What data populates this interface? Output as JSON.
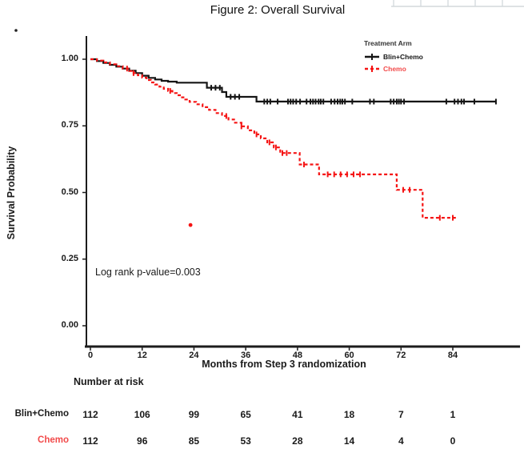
{
  "title": "Figure 2:  Overall Survival",
  "colors": {
    "black": "#151515",
    "red": "#f51414",
    "red_text": "#f24a4a",
    "axis": "#1c1c1c",
    "artifact_grid": "#d3d8db"
  },
  "legend": {
    "title": "Treatment Arm",
    "items": [
      {
        "label": "Blin+Chemo",
        "color": "#151515",
        "dash": "solid"
      },
      {
        "label": "Chemo",
        "color": "#f51414",
        "dash": "dashed"
      }
    ]
  },
  "annotation": "Log rank p-value=0.003",
  "axes": {
    "y_label": "Survival Probability",
    "x_label": "Months from Step 3 randomization",
    "y_ticks": [
      1.0,
      0.75,
      0.5,
      0.25,
      0.0
    ],
    "x_ticks": [
      0,
      12,
      24,
      36,
      48,
      60,
      72,
      84
    ]
  },
  "risk_table": {
    "header": "Number at risk",
    "rows": [
      {
        "label": "Blin+Chemo",
        "color": "#1a1a1a",
        "counts": [
          "112",
          "106",
          "99",
          "65",
          "41",
          "18",
          "7",
          "1"
        ]
      },
      {
        "label": "Chemo",
        "color": "#f24a4a",
        "counts": [
          "112",
          "96",
          "85",
          "53",
          "28",
          "14",
          "4",
          "0"
        ]
      }
    ]
  },
  "chart_data": {
    "type": "line",
    "subtype": "kaplan-meier-step",
    "title": "Figure 2:  Overall Survival",
    "xlabel": "Months from Step 3 randomization",
    "ylabel": "Survival Probability",
    "xlim": [
      0,
      96
    ],
    "ylim": [
      0.0,
      1.0
    ],
    "x_ticks": [
      0,
      12,
      24,
      36,
      48,
      60,
      72,
      84
    ],
    "y_ticks": [
      1.0,
      0.75,
      0.5,
      0.25,
      0.0
    ],
    "annotation": "Log rank p-value=0.003",
    "legend_position": "top-right-inside",
    "grid": false,
    "series": [
      {
        "name": "Blin+Chemo",
        "color": "#151515",
        "dash": "solid",
        "end_month": 94,
        "steps": [
          [
            0,
            1.0
          ],
          [
            1.5,
            0.993
          ],
          [
            3,
            0.986
          ],
          [
            4.5,
            0.979
          ],
          [
            6,
            0.972
          ],
          [
            7.5,
            0.965
          ],
          [
            9,
            0.957
          ],
          [
            10.5,
            0.948
          ],
          [
            12,
            0.938
          ],
          [
            13.5,
            0.93
          ],
          [
            15,
            0.924
          ],
          [
            16.5,
            0.919
          ],
          [
            18,
            0.916
          ],
          [
            20,
            0.912
          ],
          [
            27,
            0.893
          ],
          [
            30.5,
            0.877
          ],
          [
            31.5,
            0.859
          ],
          [
            38.5,
            0.841
          ]
        ],
        "censor_months": [
          28,
          29,
          30,
          32.5,
          33.5,
          34.5,
          40.3,
          41,
          41.7,
          43.4,
          45.8,
          46.4,
          47,
          47.7,
          48.6,
          50.1,
          51,
          51.6,
          52.2,
          52.9,
          53.4,
          54,
          55.8,
          56.6,
          57.3,
          57.9,
          58.4,
          59,
          60.7,
          64.8,
          65.7,
          69.6,
          70.3,
          71,
          71.5,
          72,
          72.7,
          82.5,
          84.4,
          85.2,
          86,
          86.6,
          89,
          94
        ]
      },
      {
        "name": "Chemo",
        "color": "#f51414",
        "dash": "dashed",
        "end_month": 84.7,
        "steps": [
          [
            0,
            1.0
          ],
          [
            1.5,
            0.995
          ],
          [
            3,
            0.988
          ],
          [
            4.5,
            0.981
          ],
          [
            6,
            0.974
          ],
          [
            7.5,
            0.965
          ],
          [
            9,
            0.956
          ],
          [
            10,
            0.948
          ],
          [
            11,
            0.94
          ],
          [
            12,
            0.931
          ],
          [
            13,
            0.922
          ],
          [
            14,
            0.913
          ],
          [
            15,
            0.905
          ],
          [
            16,
            0.897
          ],
          [
            17,
            0.889
          ],
          [
            18,
            0.881
          ],
          [
            19,
            0.873
          ],
          [
            20,
            0.865
          ],
          [
            21,
            0.857
          ],
          [
            22,
            0.849
          ],
          [
            23,
            0.84
          ],
          [
            24.5,
            0.831
          ],
          [
            26,
            0.82
          ],
          [
            27.5,
            0.81
          ],
          [
            29,
            0.798
          ],
          [
            30.5,
            0.787
          ],
          [
            32,
            0.774
          ],
          [
            33.5,
            0.762
          ],
          [
            35,
            0.748
          ],
          [
            36.5,
            0.733
          ],
          [
            38,
            0.718
          ],
          [
            39.5,
            0.703
          ],
          [
            41,
            0.688
          ],
          [
            42.5,
            0.669
          ],
          [
            44,
            0.648
          ],
          [
            48.5,
            0.605
          ],
          [
            53,
            0.568
          ],
          [
            71,
            0.51
          ],
          [
            77,
            0.405
          ]
        ],
        "censor_months": [
          8.5,
          10,
          18.5,
          31.5,
          35,
          38.5,
          41.5,
          43,
          44.5,
          45.5,
          49.5,
          55,
          56.5,
          58,
          59.5,
          61,
          62.5,
          72.5,
          74,
          81,
          84
        ],
        "stray_point": {
          "month": 23.2,
          "prob": 0.378
        }
      }
    ],
    "risk_table": {
      "header": "Number at risk",
      "time_points": [
        0,
        12,
        24,
        36,
        48,
        60,
        72,
        84
      ],
      "rows": [
        {
          "name": "Blin+Chemo",
          "counts": [
            112,
            106,
            99,
            65,
            41,
            18,
            7,
            1
          ]
        },
        {
          "name": "Chemo",
          "counts": [
            112,
            96,
            85,
            53,
            28,
            14,
            4,
            0
          ]
        }
      ]
    }
  }
}
